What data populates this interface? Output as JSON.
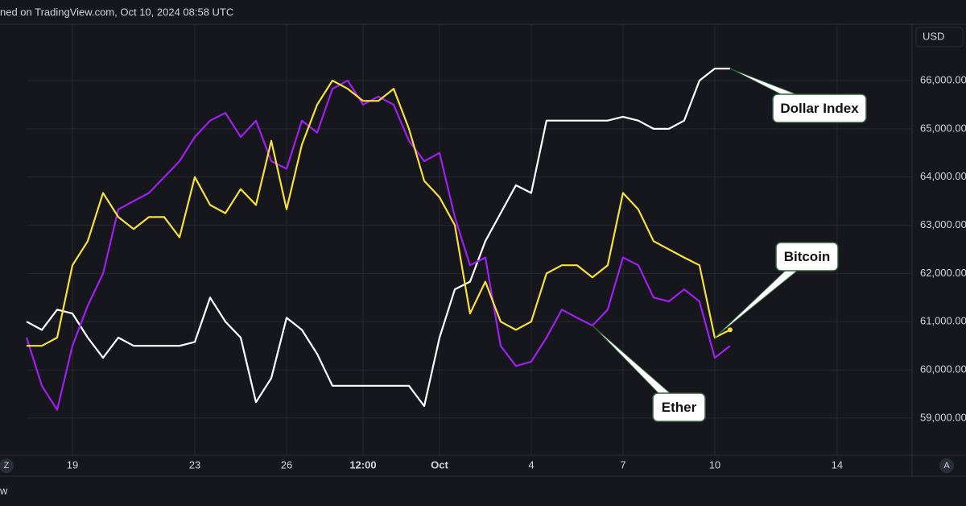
{
  "header": {
    "text": "ned on TradingView.com, Oct 10, 2024 08:58 UTC"
  },
  "ui": {
    "currency": "USD",
    "zoom_button": "Z",
    "auto_button": "A",
    "footer": "w"
  },
  "chart_data": {
    "type": "line",
    "x": [
      17.5,
      18,
      18.5,
      19,
      19.5,
      20,
      20.5,
      21,
      21.5,
      22,
      22.5,
      23,
      23.5,
      24,
      24.5,
      25,
      25.5,
      26,
      26.5,
      27,
      27.5,
      28,
      28.5,
      29,
      29.5,
      30,
      30.5,
      31,
      31.5,
      32,
      32.5,
      33,
      33.5,
      34,
      34.5,
      35,
      35.5,
      36,
      36.5,
      37,
      37.5,
      38,
      38.5,
      39,
      39.5,
      40,
      40.5
    ],
    "series": [
      {
        "name": "Bitcoin",
        "color": "#f7e03c",
        "values": [
          60500,
          60500,
          60670,
          62170,
          62670,
          63670,
          63170,
          62920,
          63170,
          63170,
          62750,
          64000,
          63420,
          63250,
          63750,
          63420,
          64750,
          63330,
          64670,
          65500,
          66000,
          65830,
          65580,
          65580,
          65830,
          65000,
          63920,
          63580,
          63000,
          61170,
          61830,
          61000,
          60830,
          61000,
          62000,
          62170,
          62170,
          61920,
          62170,
          63670,
          63330,
          62670,
          62500,
          62330,
          62170,
          60670,
          60830
        ]
      },
      {
        "name": "Ether",
        "color": "#a11ef0",
        "values": [
          60670,
          59670,
          59170,
          60500,
          61330,
          62000,
          63330,
          63500,
          63670,
          64000,
          64330,
          64830,
          65170,
          65330,
          64830,
          65170,
          64330,
          64170,
          65170,
          64920,
          65830,
          66000,
          65500,
          65670,
          65500,
          64750,
          64330,
          64500,
          63170,
          62170,
          62330,
          60500,
          60080,
          60170,
          60670,
          61250,
          61080,
          60920,
          61250,
          62330,
          62170,
          61500,
          61420,
          61670,
          61420,
          60250,
          60500
        ]
      },
      {
        "name": "Dollar Index",
        "color": "#ffffff",
        "values": [
          61000,
          60830,
          61250,
          61170,
          60670,
          60250,
          60670,
          60500,
          60500,
          60500,
          60500,
          60580,
          61500,
          61000,
          60670,
          59330,
          59830,
          61080,
          60830,
          60330,
          59670,
          59670,
          59670,
          59670,
          59670,
          59670,
          59250,
          60670,
          61670,
          61830,
          62670,
          63250,
          63830,
          63670,
          65170,
          65170,
          65170,
          65170,
          65170,
          65250,
          65170,
          65000,
          65000,
          65170,
          66000,
          66250,
          66250
        ]
      }
    ],
    "xlim": [
      17.5,
      46.45
    ],
    "xticks": [
      19,
      23,
      26,
      {
        "value": 28.5,
        "label": "12:00"
      },
      {
        "value": 31,
        "label": "Oct"
      },
      {
        "value": 34,
        "label": "4"
      },
      {
        "value": 37,
        "label": "7"
      },
      {
        "value": 40,
        "label": "10"
      },
      {
        "value": 44,
        "label": "14"
      }
    ],
    "ylim": [
      58230,
      67170
    ],
    "yticks": [
      {
        "value": 59000,
        "label": "59,000.00"
      },
      {
        "value": 60000,
        "label": "60,000.00"
      },
      {
        "value": 61000,
        "label": "61,000.00"
      },
      {
        "value": 62000,
        "label": "62,000.00"
      },
      {
        "value": 63000,
        "label": "63,000.00"
      },
      {
        "value": 64000,
        "label": "64,000.00"
      },
      {
        "value": 65000,
        "label": "65,000.00"
      },
      {
        "value": 66000,
        "label": "66,000.00"
      }
    ],
    "grid": true
  }
}
